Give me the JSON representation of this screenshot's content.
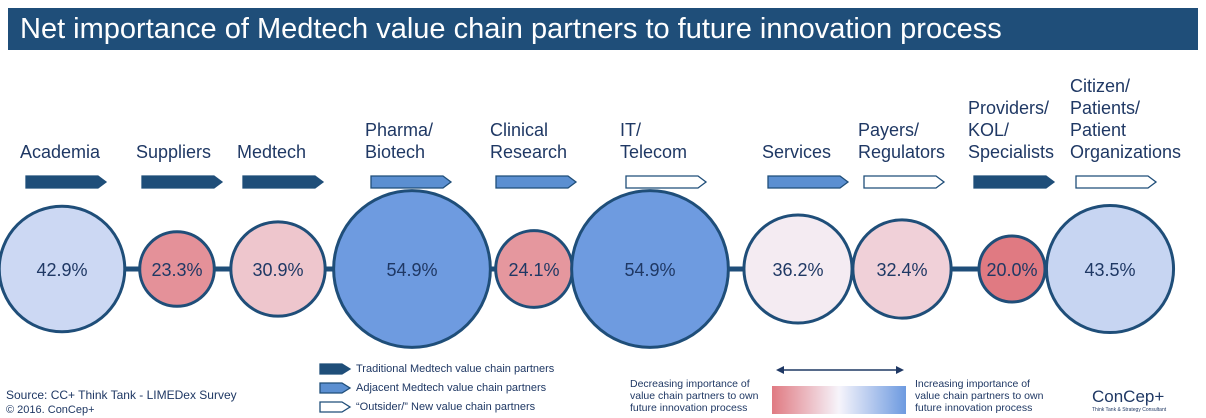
{
  "chart_data": {
    "type": "bubble",
    "title": "Net importance of Medtech value chain partners to future innovation process",
    "categories": [
      "Academia",
      "Suppliers",
      "Medtech",
      "Pharma/\nBiotech",
      "Clinical\nResearch",
      "IT/\nTelecom",
      "Services",
      "Payers/\nRegulators",
      "Providers/\nKOL/\nSpecialists",
      "Citizen/\nPatients/\nPatient\nOrganizations"
    ],
    "values": [
      42.9,
      23.3,
      30.9,
      54.9,
      24.1,
      54.9,
      36.2,
      32.4,
      20.0,
      43.5
    ],
    "value_labels": [
      "42.9%",
      "23.3%",
      "30.9%",
      "54.9%",
      "24.1%",
      "54.9%",
      "36.2%",
      "32.4%",
      "20.0%",
      "43.5%"
    ],
    "series": [
      {
        "name": "Traditional Medtech value chain partners",
        "color": "#1f4e79",
        "values": [
          42.9,
          23.3,
          30.9,
          null,
          null,
          null,
          null,
          null,
          20.0,
          null
        ]
      },
      {
        "name": "Adjacent Medtech value chain partners",
        "color": "#5b8fd1",
        "values": [
          null,
          null,
          null,
          54.9,
          24.1,
          null,
          36.2,
          null,
          null,
          null
        ]
      },
      {
        "name": "“Outsider/” New value chain partners",
        "color": "#ffffff",
        "values": [
          null,
          null,
          null,
          null,
          null,
          54.9,
          null,
          32.4,
          null,
          43.5
        ]
      }
    ],
    "colorscale": {
      "colors": [
        "#e07a82",
        "#f6f4fb",
        "#6d9ae0"
      ],
      "range": [
        20,
        55
      ],
      "low_label": "Decreasing importance of value chain partners to own future innovation process",
      "high_label": "Increasing importance of value chain partners to own future innovation process"
    }
  },
  "footer": {
    "source": "Source: CC+ Think Tank - LIMEDex Survey",
    "copyright": "© 2016. ConCep+",
    "logo": "ConCep+",
    "logo_tagline": "Think Tank & Strategy Consultant"
  }
}
